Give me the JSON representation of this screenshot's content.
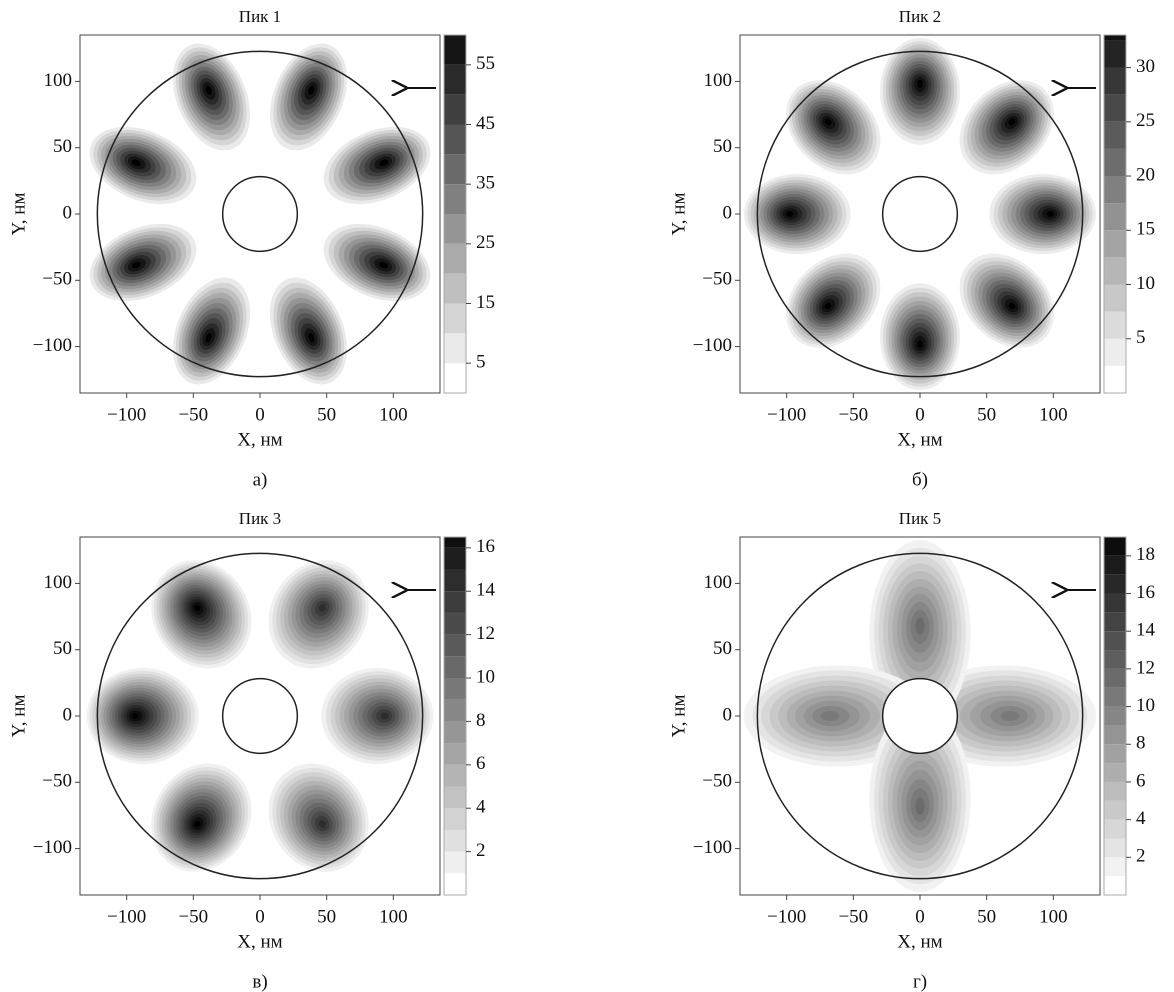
{
  "chart_data": [
    {
      "type": "contour",
      "title": "Пик 1",
      "caption": "а)",
      "xlabel": "X, нм",
      "ylabel": "Y, нм",
      "xlim": [
        -135,
        135
      ],
      "ylim": [
        -135,
        135
      ],
      "xticks": [
        {
          "value": -100,
          "label": "−100"
        },
        {
          "value": -50,
          "label": "−50"
        },
        0,
        50,
        100
      ],
      "yticks": [
        {
          "value": -100,
          "label": "−100"
        },
        {
          "value": -50,
          "label": "−50"
        },
        0,
        50,
        100
      ],
      "clim": [
        0,
        60
      ],
      "cticks": [
        5,
        15,
        25,
        35,
        45,
        55
      ]
    },
    {
      "type": "contour",
      "title": "Пик 2",
      "caption": "б)",
      "xlabel": "X, нм",
      "ylabel": "Y, нм",
      "xlim": [
        -135,
        135
      ],
      "ylim": [
        -135,
        135
      ],
      "xticks": [
        {
          "value": -100,
          "label": "−100"
        },
        {
          "value": -50,
          "label": "−50"
        },
        0,
        50,
        100
      ],
      "yticks": [
        {
          "value": -100,
          "label": "−100"
        },
        {
          "value": -50,
          "label": "−50"
        },
        0,
        50,
        100
      ],
      "clim": [
        0,
        33
      ],
      "cticks": [
        5,
        10,
        15,
        20,
        25,
        30
      ]
    },
    {
      "type": "contour",
      "title": "Пик 3",
      "caption": "в)",
      "xlabel": "X, нм",
      "ylabel": "Y, нм",
      "xlim": [
        -135,
        135
      ],
      "ylim": [
        -135,
        135
      ],
      "xticks": [
        {
          "value": -100,
          "label": "−100"
        },
        {
          "value": -50,
          "label": "−50"
        },
        0,
        50,
        100
      ],
      "yticks": [
        {
          "value": -100,
          "label": "−100"
        },
        {
          "value": -50,
          "label": "−50"
        },
        0,
        50,
        100
      ],
      "clim": [
        0,
        16.5
      ],
      "cticks": [
        2,
        4,
        6,
        8,
        10,
        12,
        14,
        16
      ]
    },
    {
      "type": "contour",
      "title": "Пик 5",
      "caption": "г)",
      "xlabel": "X, нм",
      "ylabel": "Y, нм",
      "xlim": [
        -135,
        135
      ],
      "ylim": [
        -135,
        135
      ],
      "xticks": [
        {
          "value": -100,
          "label": "−100"
        },
        {
          "value": -50,
          "label": "−50"
        },
        0,
        50,
        100
      ],
      "yticks": [
        {
          "value": -100,
          "label": "−100"
        },
        {
          "value": -50,
          "label": "−50"
        },
        0,
        50,
        100
      ],
      "clim": [
        0,
        19
      ],
      "cticks": [
        2,
        4,
        6,
        8,
        10,
        12,
        14,
        16,
        18
      ]
    }
  ]
}
